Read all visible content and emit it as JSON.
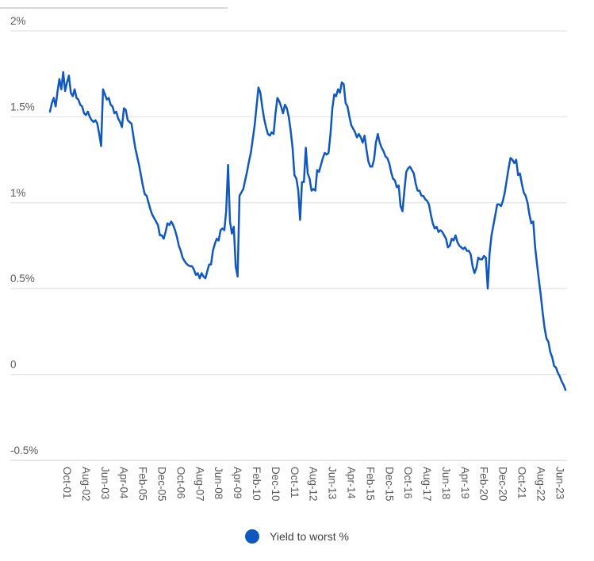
{
  "colors": {
    "line": "#1058bd",
    "grid": "#e4e4e4",
    "axis": "#d6d6d6",
    "tick_text": "#5a5a5a",
    "legend_text": "#404040",
    "divider": "#d9d9d9",
    "background": "#ffffff"
  },
  "legend": {
    "label": "Yield to worst %"
  },
  "chart_data": {
    "type": "line",
    "title": "",
    "xlabel": "",
    "ylabel": "",
    "grid": "horizontal-only",
    "legend_position": "bottom-center",
    "ylim": [
      -0.5,
      2
    ],
    "x_start_label": "Jan-01",
    "x_end_label": "Sep-23",
    "x_tick_start_index": 9,
    "x_tick_every": 10,
    "x_tick_labels": [
      "Oct-01",
      "Aug-02",
      "Jun-03",
      "Apr-04",
      "Feb-05",
      "Dec-05",
      "Oct-06",
      "Aug-07",
      "Jun-08",
      "Apr-09",
      "Feb-10",
      "Dec-10",
      "Oct-11",
      "Aug-12",
      "Jun-13",
      "Apr-14",
      "Feb-15",
      "Dec-15",
      "Oct-16",
      "Aug-17",
      "Jun-18",
      "Apr-19",
      "Feb-20",
      "Dec-20",
      "Oct-21",
      "Aug-22",
      "Jun-23"
    ],
    "y_ticks": [
      {
        "value": 2,
        "label": "2%"
      },
      {
        "value": 1.5,
        "label": "1.5%"
      },
      {
        "value": 1,
        "label": "1%"
      },
      {
        "value": 0.5,
        "label": "0.5%"
      },
      {
        "value": 0,
        "label": "0"
      },
      {
        "value": -0.5,
        "label": "-0.5%"
      }
    ],
    "series": [
      {
        "name": "Yield to worst %",
        "color": "#1058bd",
        "values": [
          1.53,
          1.58,
          1.61,
          1.56,
          1.65,
          1.72,
          1.66,
          1.76,
          1.65,
          1.7,
          1.74,
          1.64,
          1.62,
          1.66,
          1.61,
          1.6,
          1.57,
          1.56,
          1.52,
          1.51,
          1.53,
          1.5,
          1.48,
          1.47,
          1.48,
          1.46,
          1.4,
          1.33,
          1.66,
          1.63,
          1.6,
          1.61,
          1.57,
          1.56,
          1.52,
          1.53,
          1.49,
          1.47,
          1.44,
          1.55,
          1.54,
          1.48,
          1.47,
          1.46,
          1.39,
          1.32,
          1.27,
          1.22,
          1.16,
          1.1,
          1.05,
          1.04,
          1.0,
          0.96,
          0.93,
          0.91,
          0.89,
          0.87,
          0.81,
          0.81,
          0.79,
          0.83,
          0.88,
          0.87,
          0.89,
          0.87,
          0.84,
          0.8,
          0.75,
          0.72,
          0.68,
          0.66,
          0.645,
          0.635,
          0.63,
          0.63,
          0.61,
          0.58,
          0.59,
          0.56,
          0.59,
          0.57,
          0.56,
          0.6,
          0.64,
          0.64,
          0.72,
          0.76,
          0.79,
          0.78,
          0.84,
          0.85,
          0.84,
          0.95,
          1.22,
          0.89,
          0.82,
          0.86,
          0.63,
          0.57,
          1.04,
          1.06,
          1.08,
          1.13,
          1.18,
          1.24,
          1.29,
          1.37,
          1.45,
          1.56,
          1.67,
          1.64,
          1.56,
          1.49,
          1.44,
          1.4,
          1.39,
          1.41,
          1.4,
          1.52,
          1.61,
          1.59,
          1.56,
          1.52,
          1.57,
          1.55,
          1.5,
          1.42,
          1.32,
          1.16,
          1.14,
          1.07,
          0.9,
          1.12,
          1.12,
          1.32,
          1.17,
          1.14,
          1.07,
          1.08,
          1.07,
          1.19,
          1.18,
          1.22,
          1.26,
          1.29,
          1.28,
          1.29,
          1.4,
          1.55,
          1.63,
          1.62,
          1.66,
          1.64,
          1.7,
          1.69,
          1.58,
          1.56,
          1.5,
          1.45,
          1.43,
          1.41,
          1.38,
          1.4,
          1.38,
          1.35,
          1.39,
          1.31,
          1.24,
          1.21,
          1.21,
          1.25,
          1.35,
          1.4,
          1.35,
          1.32,
          1.3,
          1.27,
          1.26,
          1.23,
          1.18,
          1.14,
          1.13,
          1.09,
          1.1,
          0.98,
          0.95,
          1.07,
          1.18,
          1.2,
          1.21,
          1.19,
          1.17,
          1.11,
          1.07,
          1.07,
          1.04,
          1.04,
          1.02,
          1.01,
          0.99,
          0.93,
          0.88,
          0.85,
          0.86,
          0.83,
          0.84,
          0.83,
          0.81,
          0.79,
          0.74,
          0.75,
          0.79,
          0.78,
          0.81,
          0.77,
          0.75,
          0.74,
          0.73,
          0.74,
          0.72,
          0.72,
          0.7,
          0.63,
          0.59,
          0.62,
          0.68,
          0.67,
          0.67,
          0.69,
          0.68,
          0.5,
          0.71,
          0.81,
          0.87,
          0.93,
          0.99,
          0.99,
          0.98,
          1.01,
          1.06,
          1.13,
          1.2,
          1.26,
          1.25,
          1.23,
          1.25,
          1.16,
          1.17,
          1.11,
          1.06,
          1.04,
          1.0,
          0.93,
          0.88,
          0.89,
          0.74,
          0.64,
          0.55,
          0.46,
          0.36,
          0.27,
          0.21,
          0.19,
          0.13,
          0.1,
          0.05,
          0.04,
          0.01,
          -0.01,
          -0.04,
          -0.06,
          -0.09
        ]
      }
    ]
  }
}
